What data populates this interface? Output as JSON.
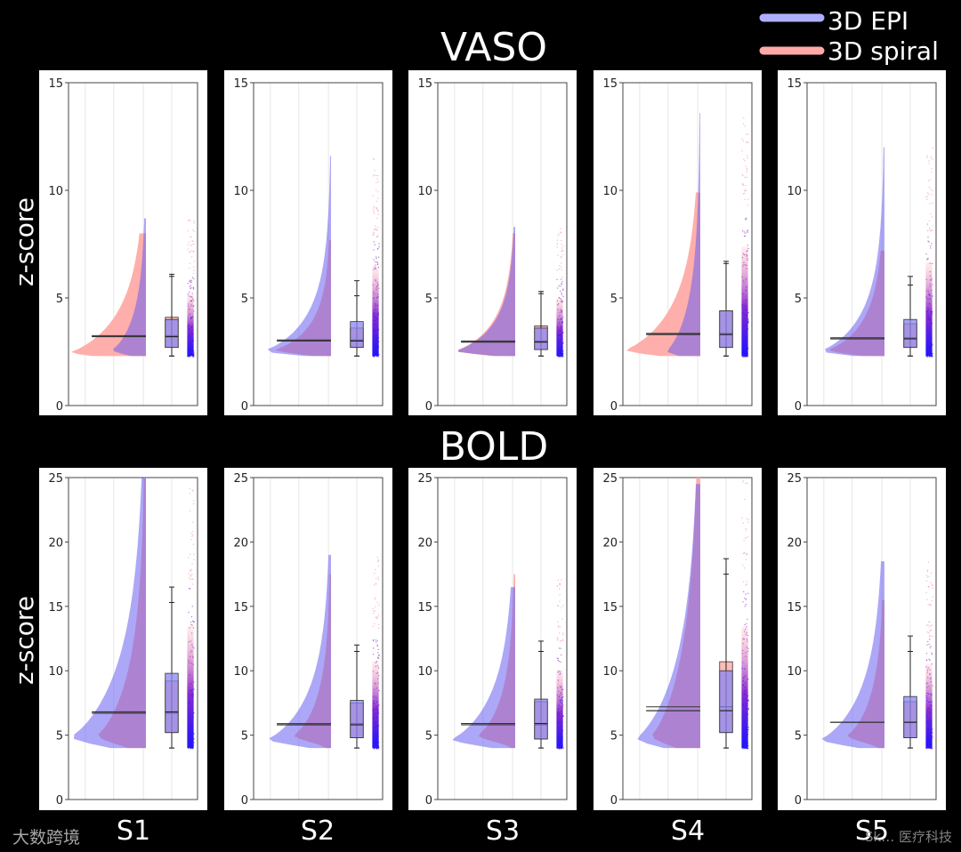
{
  "legend": {
    "position": "top-right",
    "entries": [
      {
        "label": "3D EPI",
        "color": "#aeb0ff"
      },
      {
        "label": "3D spiral",
        "color": "#ffaaa6"
      }
    ]
  },
  "colors": {
    "epi": "#a8aaff",
    "spiral": "#ffa6a2",
    "overlap": "#a875c8",
    "scatter_low": "#1a10ff",
    "scatter_high": "#ff8fa0",
    "background": "#000000",
    "panel": "#ffffff"
  },
  "ylabel": "z-score",
  "watermark": {
    "left": "大数跨境",
    "right": "Sk… 医疗科技"
  },
  "chart_data": [
    {
      "type": "raincloud",
      "title": "VASO",
      "ylabel": "z-score",
      "ylim": [
        0,
        15
      ],
      "yticks": [
        0,
        5,
        10,
        15
      ],
      "grid": true,
      "panels": [
        {
          "subject": "S1",
          "epi": {
            "min": 2.3,
            "mode": 2.6,
            "q1": 2.7,
            "median": 3.2,
            "q3": 4.0,
            "whisker_hi": 6.0,
            "max": 8.7,
            "spread": 0.45
          },
          "spiral": {
            "min": 2.3,
            "mode": 2.5,
            "q1": 2.7,
            "median": 3.25,
            "q3": 4.1,
            "whisker_hi": 6.1,
            "max": 8.0,
            "spread": 1.0
          }
        },
        {
          "subject": "S2",
          "epi": {
            "min": 2.3,
            "mode": 2.55,
            "q1": 2.7,
            "median": 3.0,
            "q3": 3.9,
            "whisker_hi": 5.8,
            "max": 11.6,
            "spread": 0.9
          },
          "spiral": {
            "min": 2.3,
            "mode": 2.6,
            "q1": 2.7,
            "median": 3.05,
            "q3": 3.6,
            "whisker_hi": 5.1,
            "max": 7.7,
            "spread": 0.75
          }
        },
        {
          "subject": "S3",
          "epi": {
            "min": 2.3,
            "mode": 2.55,
            "q1": 2.6,
            "median": 2.95,
            "q3": 3.6,
            "whisker_hi": 5.2,
            "max": 8.3,
            "spread": 0.8
          },
          "spiral": {
            "min": 2.3,
            "mode": 2.55,
            "q1": 2.6,
            "median": 3.0,
            "q3": 3.7,
            "whisker_hi": 5.3,
            "max": 8.0,
            "spread": 0.8
          }
        },
        {
          "subject": "S4",
          "epi": {
            "min": 2.3,
            "mode": 2.55,
            "q1": 2.7,
            "median": 3.3,
            "q3": 4.4,
            "whisker_hi": 6.6,
            "max": 13.6,
            "spread": 0.45
          },
          "spiral": {
            "min": 2.3,
            "mode": 2.6,
            "q1": 2.7,
            "median": 3.35,
            "q3": 4.4,
            "whisker_hi": 6.7,
            "max": 9.9,
            "spread": 1.0
          }
        },
        {
          "subject": "S5",
          "epi": {
            "min": 2.3,
            "mode": 2.55,
            "q1": 2.7,
            "median": 3.1,
            "q3": 4.0,
            "whisker_hi": 6.0,
            "max": 12.0,
            "spread": 0.85
          },
          "spiral": {
            "min": 2.3,
            "mode": 2.6,
            "q1": 2.7,
            "median": 3.15,
            "q3": 3.8,
            "whisker_hi": 5.6,
            "max": 7.2,
            "spread": 0.75
          }
        }
      ]
    },
    {
      "type": "raincloud",
      "title": "BOLD",
      "ylabel": "z-score",
      "ylim": [
        0,
        25
      ],
      "yticks": [
        0,
        5,
        10,
        15,
        20,
        25
      ],
      "grid": true,
      "panels": [
        {
          "subject": "S1",
          "epi": {
            "min": 4.0,
            "mode": 4.9,
            "q1": 5.2,
            "median": 6.8,
            "q3": 9.8,
            "whisker_hi": 16.5,
            "max": 25.0,
            "spread": 1.0
          },
          "spiral": {
            "min": 4.0,
            "mode": 5.0,
            "q1": 5.2,
            "median": 6.7,
            "q3": 9.2,
            "whisker_hi": 15.3,
            "max": 25.0,
            "spread": 0.65
          }
        },
        {
          "subject": "S2",
          "epi": {
            "min": 4.0,
            "mode": 4.7,
            "q1": 4.8,
            "median": 5.8,
            "q3": 7.7,
            "whisker_hi": 12.0,
            "max": 19.0,
            "spread": 0.85
          },
          "spiral": {
            "min": 4.0,
            "mode": 5.0,
            "q1": 4.8,
            "median": 5.9,
            "q3": 7.5,
            "whisker_hi": 11.5,
            "max": 17.5,
            "spread": 0.5
          }
        },
        {
          "subject": "S3",
          "epi": {
            "min": 4.0,
            "mode": 4.7,
            "q1": 4.7,
            "median": 5.9,
            "q3": 7.8,
            "whisker_hi": 12.3,
            "max": 16.5,
            "spread": 0.85
          },
          "spiral": {
            "min": 4.0,
            "mode": 5.0,
            "q1": 4.7,
            "median": 5.8,
            "q3": 7.6,
            "whisker_hi": 11.5,
            "max": 17.5,
            "spread": 0.5
          }
        },
        {
          "subject": "S4",
          "epi": {
            "min": 4.0,
            "mode": 4.8,
            "q1": 5.2,
            "median": 6.9,
            "q3": 10.0,
            "whisker_hi": 17.5,
            "max": 24.5,
            "spread": 0.85
          },
          "spiral": {
            "min": 4.0,
            "mode": 5.0,
            "q1": 5.2,
            "median": 7.2,
            "q3": 10.7,
            "whisker_hi": 18.7,
            "max": 25.0,
            "spread": 0.65
          }
        },
        {
          "subject": "S5",
          "epi": {
            "min": 4.0,
            "mode": 4.7,
            "q1": 4.8,
            "median": 6.0,
            "q3": 8.0,
            "whisker_hi": 12.7,
            "max": 18.5,
            "spread": 0.85
          },
          "spiral": {
            "min": 4.0,
            "mode": 5.0,
            "q1": 4.8,
            "median": 6.0,
            "q3": 7.6,
            "whisker_hi": 11.5,
            "max": 15.5,
            "spread": 0.5
          }
        }
      ]
    }
  ]
}
